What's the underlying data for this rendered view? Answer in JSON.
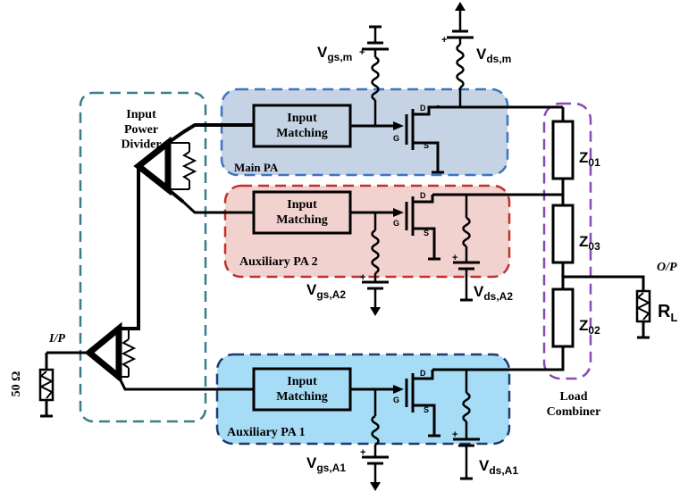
{
  "blocks": {
    "input_divider": "Input\nPower\nDivider",
    "matching_main": "Input\nMatching",
    "matching_a2": "Input\nMatching",
    "matching_a1": "Input\nMatching",
    "main_pa": "Main PA",
    "aux_pa2": "Auxiliary PA 2",
    "aux_pa1": "Auxiliary PA 1",
    "load_combiner": "Load\nCombiner"
  },
  "terminals": {
    "drain": "D",
    "gate": "G",
    "source": "S"
  },
  "supplies": {
    "vgs_main": {
      "base": "V",
      "sub": "gs,m"
    },
    "vds_main": {
      "base": "V",
      "sub": "ds,m"
    },
    "vgs_a2": {
      "base": "V",
      "sub": "gs,A2"
    },
    "vds_a2": {
      "base": "V",
      "sub": "ds,A2"
    },
    "vgs_a1": {
      "base": "V",
      "sub": "gs,A1"
    },
    "vds_a1": {
      "base": "V",
      "sub": "ds,A1"
    }
  },
  "impedances": {
    "z01": {
      "base": "Z",
      "sub": "01"
    },
    "z03": {
      "base": "Z",
      "sub": "03"
    },
    "z02": {
      "base": "Z",
      "sub": "02"
    }
  },
  "load": {
    "base": "R",
    "sub": "L"
  },
  "ports": {
    "input": "I/P",
    "output": "O/P",
    "source_impedance": "50 Ω"
  },
  "polarity": {
    "plus": "+"
  },
  "colors": {
    "main_fill": "#c5d3e4",
    "main_stroke": "#3d75c0",
    "aux2_fill": "#f2d2cf",
    "aux2_stroke": "#c0302c",
    "aux1_fill": "#a6dcf5",
    "aux1_stroke": "#1f3a6e",
    "divider_stroke": "#3c7b88",
    "combiner_stroke": "#8a49b7",
    "wire": "#000000"
  }
}
